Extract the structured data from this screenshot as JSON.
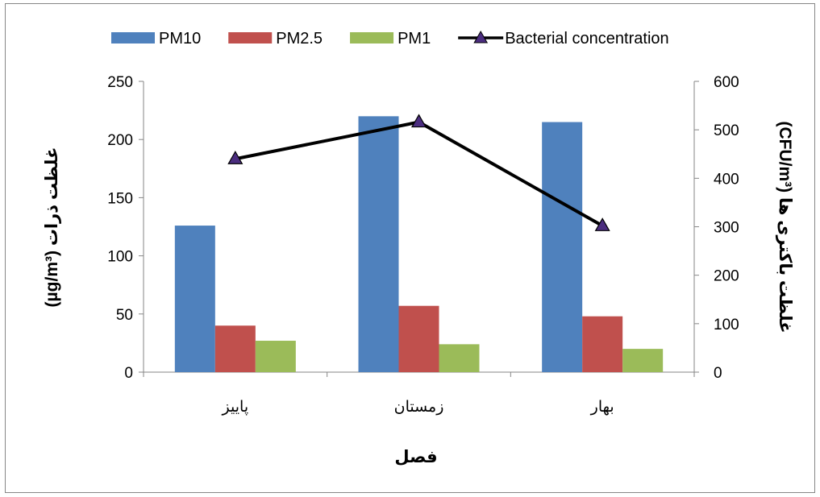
{
  "chart_data": {
    "type": "bar",
    "title": "",
    "categories": [
      "پاییز",
      "زمستان",
      "بهار"
    ],
    "xlabel": "فصل",
    "ylabel": "غلظت ذرات (µg/m³)",
    "ylabel2": "غلظت باکتری ها (CFU/m³)",
    "ylim": [
      0,
      250
    ],
    "yticks": [
      0,
      50,
      100,
      150,
      200,
      250
    ],
    "ylim2": [
      0,
      600
    ],
    "yticks2": [
      0,
      100,
      200,
      300,
      400,
      500,
      600
    ],
    "legend_position": "top",
    "grid": false,
    "series": [
      {
        "name": "PM10",
        "type": "bar",
        "axis": "left",
        "color": "#4F81BD",
        "values": [
          126,
          220,
          215
        ]
      },
      {
        "name": "PM2.5",
        "type": "bar",
        "axis": "left",
        "color": "#C0504D",
        "values": [
          40,
          57,
          48
        ]
      },
      {
        "name": "PM1",
        "type": "bar",
        "axis": "left",
        "color": "#9BBB59",
        "values": [
          27,
          24,
          20
        ]
      },
      {
        "name": "Bacterial concentration",
        "type": "line",
        "axis": "right",
        "color": "#000000",
        "marker": "triangle",
        "marker_color": "#4B2D7F",
        "values": [
          440,
          516,
          302
        ]
      }
    ]
  }
}
